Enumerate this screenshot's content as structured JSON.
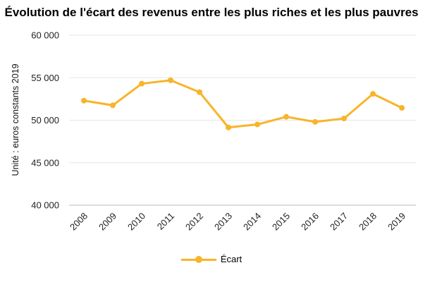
{
  "chart_data": {
    "type": "line",
    "title": "Évolution de l'écart des revenus entre les plus riches et les plus pauvres",
    "xlabel": "",
    "ylabel": "Unité : euros constants 2019",
    "x": [
      "2008",
      "2009",
      "2010",
      "2011",
      "2012",
      "2013",
      "2014",
      "2015",
      "2016",
      "2017",
      "2018",
      "2019"
    ],
    "series": [
      {
        "name": "Écart",
        "values": [
          52300,
          51750,
          54300,
          54700,
          53300,
          49150,
          49500,
          50400,
          49800,
          50200,
          53100,
          51450
        ]
      }
    ],
    "y_ticks": [
      "40 000",
      "45 000",
      "50 000",
      "55 000",
      "60 000"
    ],
    "y_tick_values": [
      40000,
      45000,
      50000,
      55000,
      60000
    ],
    "ylim": [
      40000,
      60000
    ],
    "grid": true,
    "legend_position": "bottom",
    "colors": {
      "series": "#f8b42a",
      "grid": "#e6e6e6"
    }
  }
}
